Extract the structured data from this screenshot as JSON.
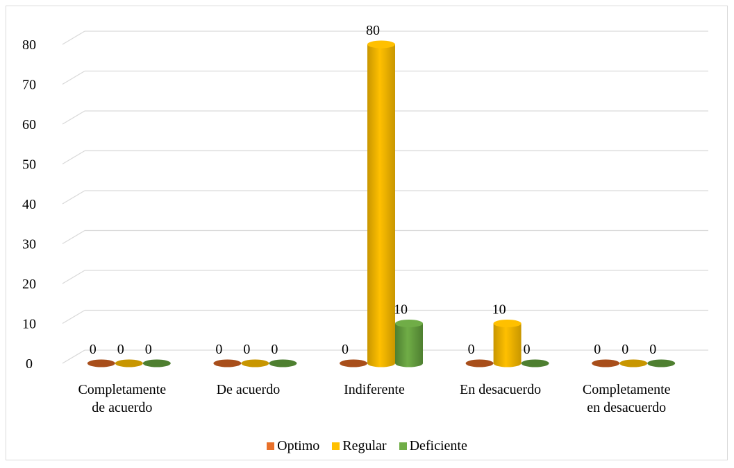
{
  "chart_data": {
    "type": "bar",
    "variant": "3d-cylinder",
    "categories": [
      "Completamente de acuerdo",
      "De acuerdo",
      "Indiferente",
      "En desacuerdo",
      "Completamente en desacuerdo"
    ],
    "category_lines": [
      [
        "Completamente",
        "de acuerdo"
      ],
      [
        "De acuerdo"
      ],
      [
        "Indiferente"
      ],
      [
        "En desacuerdo"
      ],
      [
        "Completamente",
        "en desacuerdo"
      ]
    ],
    "series": [
      {
        "name": "Optimo",
        "values": [
          0,
          0,
          0,
          0,
          0
        ],
        "color": "#E8702A",
        "shade": "#A84E1A"
      },
      {
        "name": "Regular",
        "values": [
          0,
          0,
          80,
          10,
          0
        ],
        "color": "#FFC000",
        "shade": "#C89600"
      },
      {
        "name": "Deficiente",
        "values": [
          0,
          0,
          10,
          0,
          0
        ],
        "color": "#70AD47",
        "shade": "#4E7F30"
      }
    ],
    "ylim": [
      0,
      80
    ],
    "yticks": [
      0,
      10,
      20,
      30,
      40,
      50,
      60,
      70,
      80
    ],
    "grid": true,
    "legend_position": "bottom",
    "data_labels": true
  }
}
